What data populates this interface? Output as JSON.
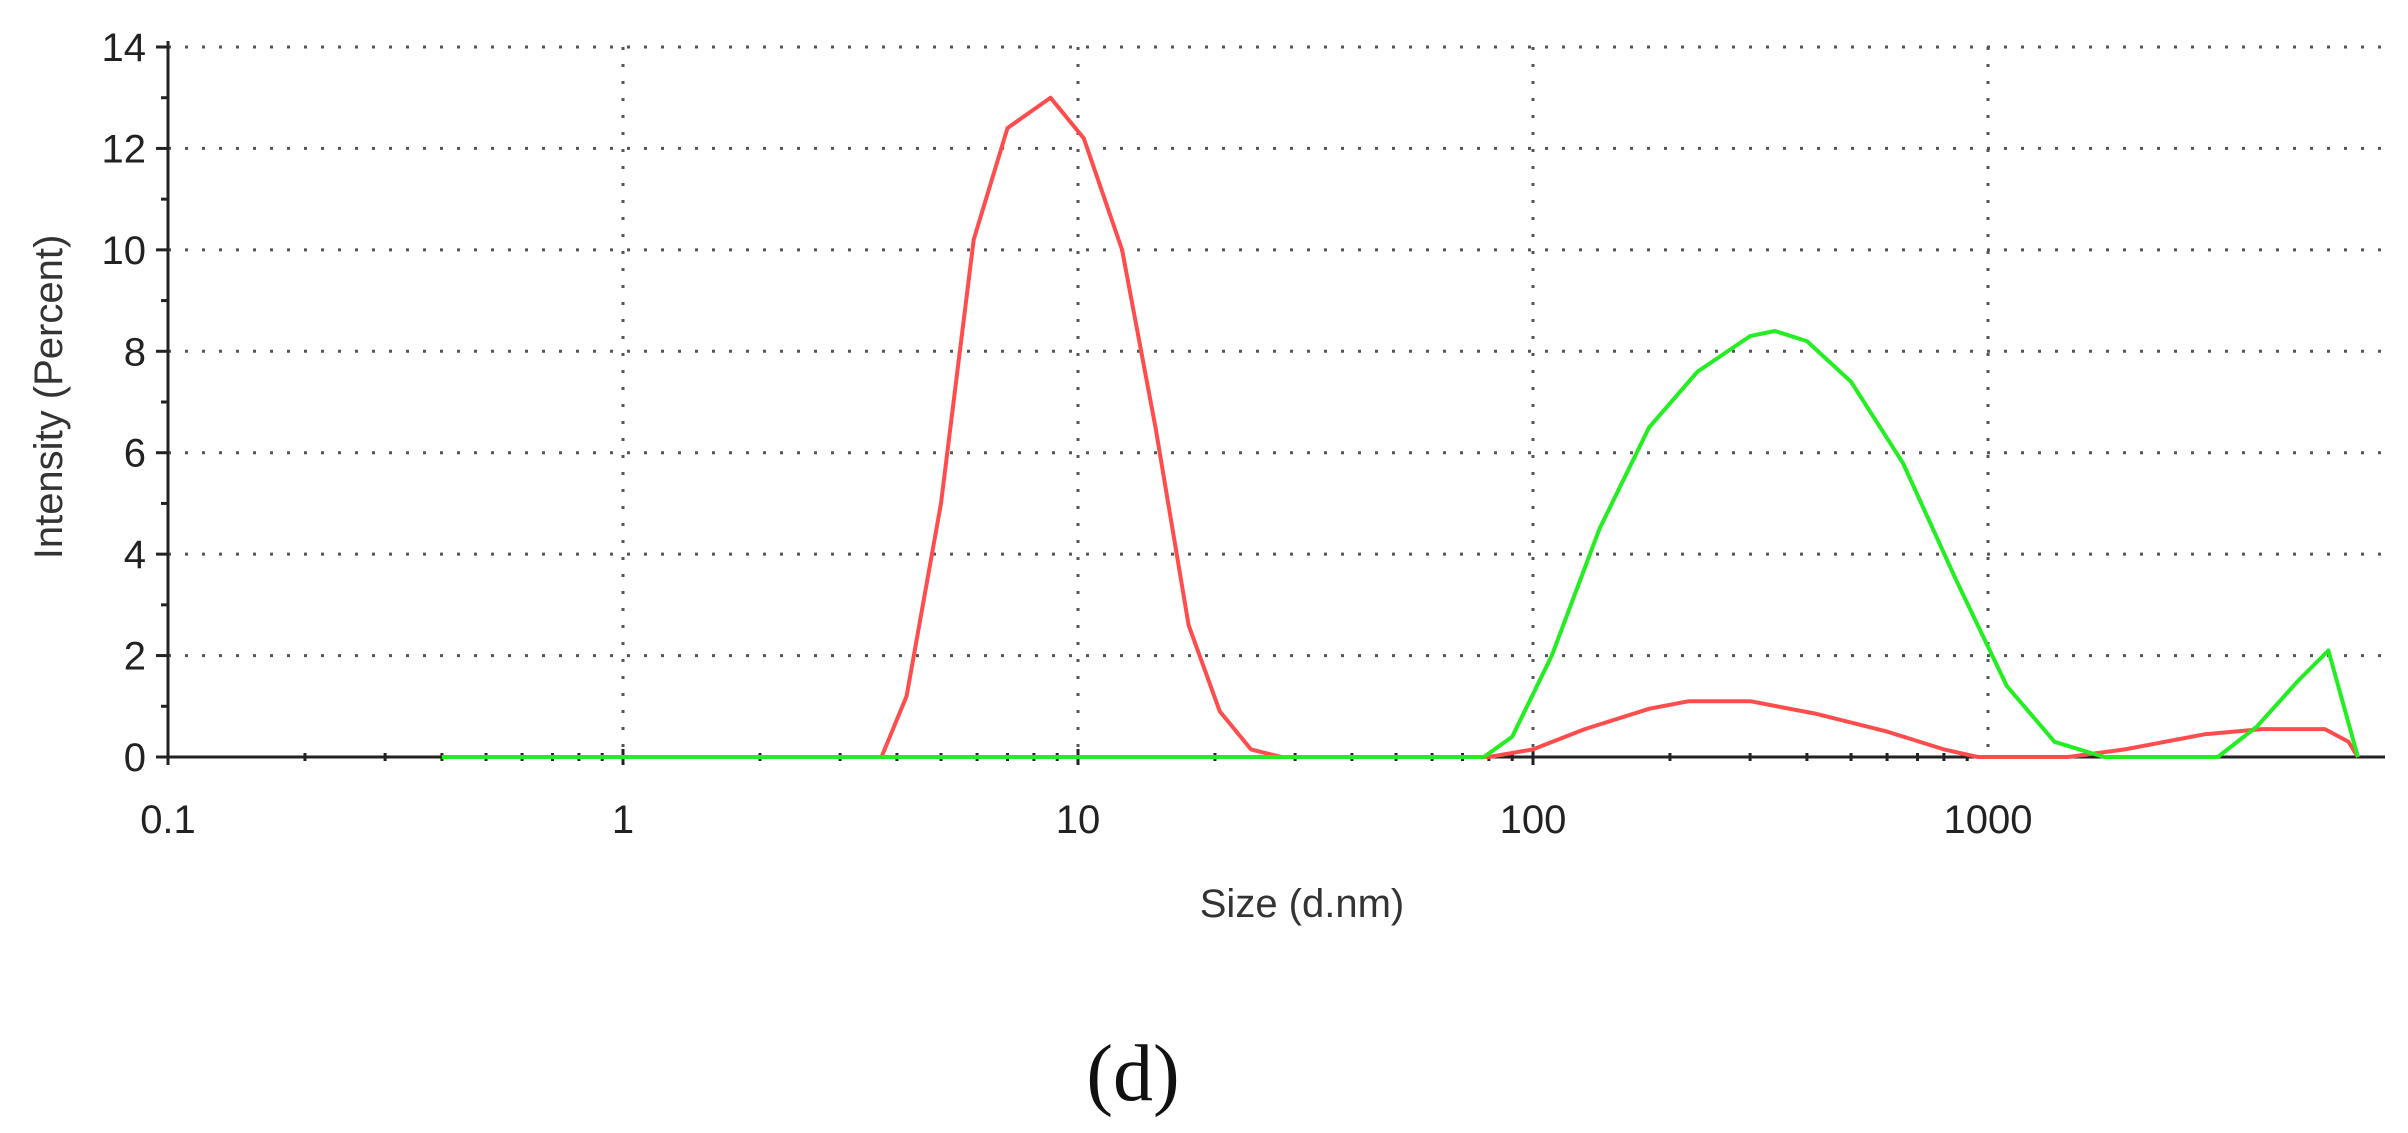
{
  "caption": "(d)",
  "chart_data": {
    "type": "line",
    "title": "",
    "xlabel": "Size (d.nm)",
    "ylabel": "Intensity (Percent)",
    "xscale": "log",
    "xlim": [
      0.1,
      10000
    ],
    "ylim": [
      0,
      14
    ],
    "x_ticks": [
      0.1,
      1,
      10,
      100,
      1000
    ],
    "x_tick_labels": [
      "0.1",
      "1",
      "10",
      "100",
      "1000"
    ],
    "y_ticks": [
      0,
      2,
      4,
      6,
      8,
      10,
      12,
      14
    ],
    "y_tick_labels": [
      "0",
      "2",
      "4",
      "6",
      "8",
      "10",
      "12",
      "14"
    ],
    "grid": true,
    "legend": "none",
    "series": [
      {
        "color": "#ff4d4d",
        "points": [
          [
            0.4,
            0
          ],
          [
            3.7,
            0
          ],
          [
            4.2,
            1.2
          ],
          [
            5.0,
            5.0
          ],
          [
            5.9,
            10.2
          ],
          [
            7.0,
            12.4
          ],
          [
            8.7,
            13.0
          ],
          [
            10.3,
            12.2
          ],
          [
            12.5,
            10.0
          ],
          [
            14.8,
            6.5
          ],
          [
            17.5,
            2.6
          ],
          [
            20.5,
            0.9
          ],
          [
            24,
            0.15
          ],
          [
            28,
            0
          ],
          [
            80,
            0
          ],
          [
            100,
            0.15
          ],
          [
            130,
            0.55
          ],
          [
            180,
            0.95
          ],
          [
            220,
            1.1
          ],
          [
            300,
            1.1
          ],
          [
            420,
            0.85
          ],
          [
            600,
            0.5
          ],
          [
            800,
            0.15
          ],
          [
            950,
            0
          ],
          [
            1500,
            0
          ],
          [
            2000,
            0.15
          ],
          [
            3000,
            0.45
          ],
          [
            4000,
            0.55
          ],
          [
            5500,
            0.55
          ],
          [
            6200,
            0.3
          ],
          [
            6500,
            0
          ]
        ]
      },
      {
        "color": "#22ee22",
        "points": [
          [
            0.4,
            0
          ],
          [
            78,
            0
          ],
          [
            90,
            0.4
          ],
          [
            110,
            2.0
          ],
          [
            140,
            4.5
          ],
          [
            180,
            6.5
          ],
          [
            230,
            7.6
          ],
          [
            300,
            8.3
          ],
          [
            340,
            8.4
          ],
          [
            400,
            8.2
          ],
          [
            500,
            7.4
          ],
          [
            650,
            5.8
          ],
          [
            850,
            3.5
          ],
          [
            1100,
            1.4
          ],
          [
            1400,
            0.3
          ],
          [
            1800,
            0
          ],
          [
            3200,
            0
          ],
          [
            3900,
            0.6
          ],
          [
            4800,
            1.5
          ],
          [
            5600,
            2.1
          ],
          [
            6500,
            0
          ]
        ]
      }
    ]
  }
}
